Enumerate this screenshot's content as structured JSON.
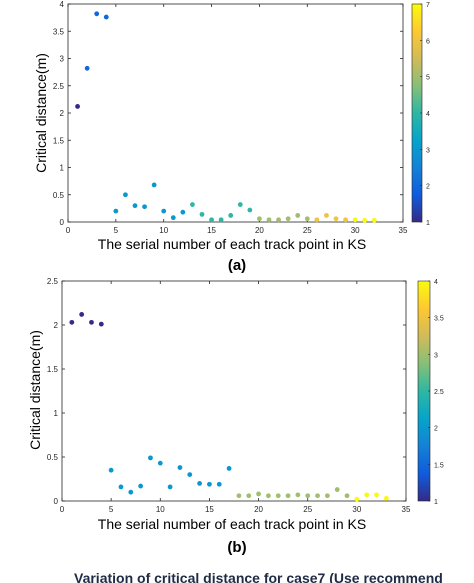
{
  "chart_data": [
    {
      "type": "scatter",
      "panel_label": "(a)",
      "xlabel": "The serial number of each track point in KS",
      "ylabel": "Critical distance(m)",
      "xlim": [
        0,
        35
      ],
      "ylim": [
        0,
        4
      ],
      "xticks": [
        0,
        5,
        10,
        15,
        20,
        25,
        30,
        35
      ],
      "yticks": [
        0,
        0.5,
        1,
        1.5,
        2,
        2.5,
        3,
        3.5,
        4
      ],
      "grid": false,
      "colorbar": {
        "colormap": "parula",
        "range": [
          1,
          7
        ],
        "ticks": [
          1,
          2,
          3,
          4,
          5,
          6,
          7
        ]
      },
      "x": [
        1,
        2,
        3,
        4,
        5,
        6,
        7,
        8,
        9,
        10,
        11,
        12,
        13,
        14,
        15,
        16,
        17,
        18,
        19,
        20,
        21,
        22,
        23,
        24,
        25,
        26,
        27,
        28,
        29,
        30,
        31,
        32
      ],
      "y": [
        2.12,
        2.82,
        3.82,
        3.76,
        0.2,
        0.5,
        0.3,
        0.28,
        0.68,
        0.2,
        0.08,
        0.18,
        0.32,
        0.14,
        0.04,
        0.04,
        0.12,
        0.32,
        0.22,
        0.06,
        0.04,
        0.04,
        0.06,
        0.12,
        0.06,
        0.04,
        0.12,
        0.06,
        0.04,
        0.04,
        0.03,
        0.03
      ],
      "c": [
        1,
        2,
        2,
        2,
        3,
        3,
        3,
        3,
        3,
        3,
        3,
        3,
        4,
        4,
        4,
        4,
        4,
        4,
        4,
        5,
        5,
        5,
        5,
        5,
        5,
        6,
        6,
        6,
        6,
        7,
        7,
        7
      ]
    },
    {
      "type": "scatter",
      "panel_label": "(b)",
      "xlabel": "The serial number of each track point in KS",
      "ylabel": "Critical distance(m)",
      "xlim": [
        0,
        35
      ],
      "ylim": [
        0,
        2.5
      ],
      "xticks": [
        0,
        5,
        10,
        15,
        20,
        25,
        30,
        35
      ],
      "yticks": [
        0,
        0.5,
        1,
        1.5,
        2,
        2.5
      ],
      "grid": false,
      "colorbar": {
        "colormap": "parula",
        "range": [
          1,
          4
        ],
        "ticks": [
          1,
          1.5,
          2,
          2.5,
          3,
          3.5,
          4
        ]
      },
      "x": [
        1,
        2,
        3,
        4,
        5,
        6,
        7,
        8,
        9,
        10,
        11,
        12,
        13,
        14,
        15,
        16,
        17,
        18,
        19,
        20,
        21,
        22,
        23,
        24,
        25,
        26,
        27,
        28,
        29,
        30,
        31,
        32,
        33
      ],
      "y": [
        2.03,
        2.12,
        2.03,
        2.01,
        0.35,
        0.16,
        0.1,
        0.17,
        0.49,
        0.43,
        0.16,
        0.38,
        0.3,
        0.2,
        0.19,
        0.19,
        0.37,
        0.06,
        0.06,
        0.08,
        0.06,
        0.06,
        0.06,
        0.07,
        0.06,
        0.06,
        0.06,
        0.13,
        0.06,
        0.02,
        0.07,
        0.07,
        0.03
      ],
      "c": [
        1,
        1,
        1,
        1,
        2,
        2,
        2,
        2,
        2,
        2,
        2,
        2,
        2,
        2,
        2,
        2,
        2,
        3,
        3,
        3,
        3,
        3,
        3,
        3,
        3,
        3,
        3,
        3,
        3,
        4,
        4,
        4,
        4
      ]
    }
  ],
  "caption": "Variation of critical distance for case7 (Use recommend"
}
